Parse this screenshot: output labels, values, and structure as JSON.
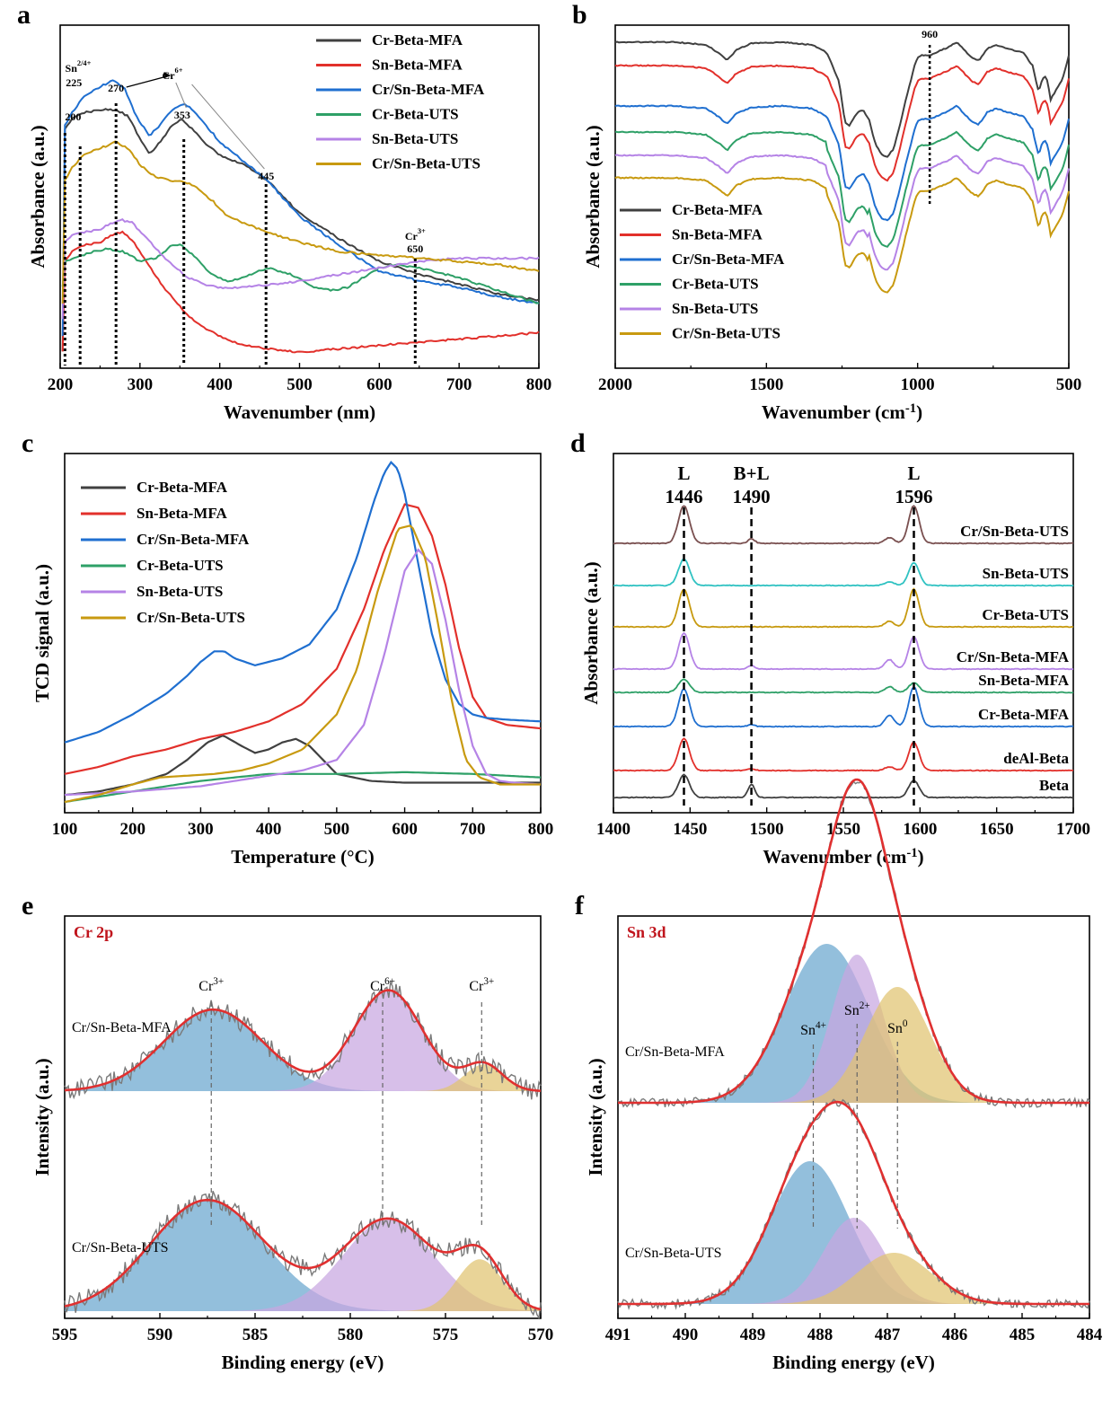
{
  "series_colors": {
    "Cr-Beta-MFA": "#404040",
    "Sn-Beta-MFA": "#e2302b",
    "Cr/Sn-Beta-MFA": "#1f6fd0",
    "Cr-Beta-UTS": "#2ea067",
    "Sn-Beta-UTS": "#b583e6",
    "Cr/Sn-Beta-UTS": "#c89a10"
  },
  "fit_colors": {
    "cr3": "#6aa6cf",
    "cr6": "#c7a6e0",
    "cr3b": "#e1c370",
    "raw": "#7a7a7a",
    "envelope": "#e03030",
    "sn4": "#6aa6cf",
    "sn2": "#c7a6e0",
    "sn0": "#e1c370"
  },
  "chart_data": [
    {
      "panel": "a",
      "type": "line",
      "xlabel": "Wavenumber (nm)",
      "ylabel": "Absorbance (a.u.)",
      "xlim": [
        200,
        800
      ],
      "xticks": [
        "200",
        "300",
        "400",
        "500",
        "600",
        "700",
        "800"
      ],
      "legend": [
        "Cr-Beta-MFA",
        "Sn-Beta-MFA",
        "Cr/Sn-Beta-MFA",
        "Cr-Beta-UTS",
        "Sn-Beta-UTS",
        "Cr/Sn-Beta-UTS"
      ],
      "annotations": {
        "a200": "200",
        "sn": "Sn",
        "sn_sup": "2/4+",
        "a225": "225",
        "a270": "270",
        "cr6": "Cr",
        "cr6_sup": "6+",
        "a353": "353",
        "a445": "445",
        "cr3": "Cr",
        "cr3_sup": "3+",
        "a650": "650"
      },
      "markers": [
        206,
        225,
        270,
        355,
        458,
        645
      ],
      "series": [
        {
          "name": "Cr-Beta-MFA",
          "x": [
            203,
            206,
            215,
            230,
            250,
            270,
            285,
            300,
            312,
            325,
            340,
            353,
            365,
            380,
            400,
            430,
            460,
            500,
            550,
            600,
            650,
            700,
            750,
            800
          ],
          "y": [
            0.05,
            0.74,
            0.77,
            0.79,
            0.8,
            0.8,
            0.78,
            0.71,
            0.66,
            0.7,
            0.75,
            0.77,
            0.74,
            0.7,
            0.66,
            0.63,
            0.58,
            0.48,
            0.4,
            0.33,
            0.29,
            0.26,
            0.23,
            0.21
          ]
        },
        {
          "name": "Sn-Beta-MFA",
          "x": [
            203,
            206,
            215,
            230,
            250,
            270,
            280,
            295,
            310,
            330,
            350,
            370,
            400,
            430,
            460,
            500,
            550,
            600,
            650,
            700,
            750,
            800
          ],
          "y": [
            0.05,
            0.33,
            0.36,
            0.38,
            0.39,
            0.42,
            0.42,
            0.38,
            0.32,
            0.25,
            0.19,
            0.14,
            0.1,
            0.07,
            0.06,
            0.05,
            0.06,
            0.07,
            0.08,
            0.09,
            0.1,
            0.11
          ]
        },
        {
          "name": "Cr/Sn-Beta-MFA",
          "x": [
            203,
            206,
            215,
            230,
            250,
            265,
            280,
            295,
            312,
            325,
            340,
            355,
            365,
            380,
            400,
            430,
            460,
            500,
            550,
            600,
            650,
            700,
            750,
            800
          ],
          "y": [
            0.1,
            0.75,
            0.79,
            0.84,
            0.87,
            0.89,
            0.87,
            0.78,
            0.72,
            0.75,
            0.8,
            0.82,
            0.8,
            0.76,
            0.7,
            0.64,
            0.58,
            0.47,
            0.38,
            0.3,
            0.27,
            0.25,
            0.22,
            0.2
          ]
        },
        {
          "name": "Cr-Beta-UTS",
          "x": [
            203,
            206,
            220,
            240,
            260,
            280,
            300,
            320,
            340,
            353,
            370,
            390,
            410,
            430,
            460,
            490,
            520,
            540,
            560,
            580,
            600,
            620,
            650,
            700,
            750,
            800
          ],
          "y": [
            0.25,
            0.33,
            0.34,
            0.36,
            0.37,
            0.36,
            0.33,
            0.34,
            0.38,
            0.38,
            0.34,
            0.29,
            0.27,
            0.28,
            0.31,
            0.29,
            0.25,
            0.24,
            0.25,
            0.28,
            0.31,
            0.32,
            0.31,
            0.28,
            0.24,
            0.2
          ]
        },
        {
          "name": "Sn-Beta-UTS",
          "x": [
            203,
            206,
            215,
            230,
            250,
            265,
            275,
            290,
            305,
            320,
            340,
            360,
            380,
            400,
            430,
            470,
            500,
            550,
            600,
            650,
            700,
            750,
            800
          ],
          "y": [
            0.15,
            0.39,
            0.41,
            0.42,
            0.43,
            0.45,
            0.46,
            0.45,
            0.41,
            0.37,
            0.32,
            0.28,
            0.26,
            0.25,
            0.25,
            0.26,
            0.27,
            0.29,
            0.31,
            0.33,
            0.34,
            0.34,
            0.34
          ]
        },
        {
          "name": "Cr/Sn-Beta-UTS",
          "x": [
            203,
            206,
            215,
            230,
            250,
            270,
            285,
            300,
            320,
            340,
            353,
            370,
            390,
            410,
            430,
            460,
            500,
            550,
            600,
            650,
            700,
            750,
            800
          ],
          "y": [
            0.2,
            0.58,
            0.62,
            0.66,
            0.68,
            0.7,
            0.68,
            0.63,
            0.59,
            0.58,
            0.58,
            0.56,
            0.52,
            0.47,
            0.45,
            0.42,
            0.39,
            0.36,
            0.35,
            0.34,
            0.33,
            0.32,
            0.3
          ]
        }
      ]
    },
    {
      "panel": "b",
      "type": "line",
      "xlabel": "Wavenumber (cm",
      "xlabel_sup": "-1",
      "xlabel_close": ")",
      "ylabel": "Absorbance (a.u.)",
      "xlim": [
        2000,
        500
      ],
      "xticks": [
        "2000",
        "1500",
        "1000",
        "500"
      ],
      "legend": [
        "Cr-Beta-MFA",
        "Sn-Beta-MFA",
        "Cr/Sn-Beta-MFA",
        "Cr-Beta-UTS",
        "Sn-Beta-UTS",
        "Cr/Sn-Beta-UTS"
      ],
      "annotations": {
        "a960": "960"
      },
      "markers": [
        960
      ],
      "offsets": [
        0,
        1,
        2,
        3,
        4,
        5
      ],
      "template_x": [
        2000,
        1900,
        1800,
        1700,
        1660,
        1630,
        1600,
        1550,
        1450,
        1350,
        1300,
        1260,
        1240,
        1225,
        1200,
        1180,
        1160,
        1140,
        1120,
        1100,
        1080,
        1060,
        1040,
        1010,
        1000,
        990,
        960,
        900,
        870,
        850,
        820,
        800,
        790,
        770,
        740,
        700,
        650,
        620,
        600,
        590,
        580,
        570,
        560,
        540,
        520,
        500
      ],
      "template_y": [
        0,
        0,
        0,
        -0.02,
        -0.08,
        -0.14,
        -0.06,
        -0.01,
        0,
        -0.02,
        -0.08,
        -0.3,
        -0.62,
        -0.64,
        -0.54,
        -0.52,
        -0.6,
        -0.78,
        -0.86,
        -0.88,
        -0.82,
        -0.65,
        -0.45,
        -0.18,
        -0.12,
        -0.1,
        -0.1,
        -0.04,
        0,
        -0.05,
        -0.12,
        -0.14,
        -0.12,
        -0.05,
        -0.02,
        -0.05,
        -0.08,
        -0.18,
        -0.38,
        -0.3,
        -0.26,
        -0.3,
        -0.44,
        -0.36,
        -0.28,
        -0.1
      ]
    },
    {
      "panel": "c",
      "type": "line",
      "xlabel": "Temperature (°C)",
      "ylabel": "TCD signal (a.u.)",
      "xlim": [
        100,
        800
      ],
      "xticks": [
        "100",
        "200",
        "300",
        "400",
        "500",
        "600",
        "700",
        "800"
      ],
      "legend": [
        "Cr-Beta-MFA",
        "Sn-Beta-MFA",
        "Cr/Sn-Beta-MFA",
        "Cr-Beta-UTS",
        "Sn-Beta-UTS",
        "Cr/Sn-Beta-UTS"
      ],
      "series": [
        {
          "name": "Cr-Beta-MFA",
          "x": [
            100,
            150,
            200,
            250,
            280,
            310,
            333,
            360,
            380,
            400,
            420,
            440,
            460,
            480,
            500,
            550,
            600,
            650,
            700,
            750,
            800
          ],
          "y": [
            0.02,
            0.03,
            0.05,
            0.08,
            0.12,
            0.17,
            0.19,
            0.16,
            0.14,
            0.15,
            0.17,
            0.18,
            0.16,
            0.12,
            0.08,
            0.06,
            0.055,
            0.055,
            0.055,
            0.055,
            0.055
          ]
        },
        {
          "name": "Sn-Beta-MFA",
          "x": [
            100,
            150,
            200,
            250,
            300,
            350,
            400,
            450,
            500,
            540,
            570,
            600,
            620,
            640,
            660,
            680,
            700,
            720,
            750,
            800
          ],
          "y": [
            0.08,
            0.1,
            0.13,
            0.15,
            0.18,
            0.2,
            0.23,
            0.28,
            0.38,
            0.55,
            0.72,
            0.85,
            0.84,
            0.76,
            0.62,
            0.44,
            0.3,
            0.24,
            0.22,
            0.21
          ]
        },
        {
          "name": "Cr/Sn-Beta-MFA",
          "x": [
            100,
            150,
            200,
            250,
            280,
            300,
            320,
            335,
            350,
            380,
            420,
            460,
            500,
            530,
            555,
            570,
            580,
            590,
            600,
            620,
            640,
            660,
            680,
            700,
            720,
            750,
            800
          ],
          "y": [
            0.17,
            0.2,
            0.25,
            0.31,
            0.36,
            0.4,
            0.43,
            0.43,
            0.41,
            0.39,
            0.41,
            0.45,
            0.55,
            0.7,
            0.86,
            0.94,
            0.97,
            0.95,
            0.88,
            0.68,
            0.48,
            0.35,
            0.28,
            0.25,
            0.24,
            0.235,
            0.23
          ]
        },
        {
          "name": "Cr-Beta-UTS",
          "x": [
            100,
            200,
            300,
            400,
            450,
            500,
            600,
            700,
            800
          ],
          "y": [
            0.0,
            0.03,
            0.06,
            0.08,
            0.08,
            0.08,
            0.085,
            0.08,
            0.07
          ]
        },
        {
          "name": "Sn-Beta-UTS",
          "x": [
            100,
            200,
            300,
            350,
            400,
            450,
            500,
            540,
            570,
            600,
            620,
            640,
            660,
            680,
            700,
            720,
            740,
            760,
            800
          ],
          "y": [
            0.02,
            0.03,
            0.045,
            0.06,
            0.075,
            0.09,
            0.12,
            0.22,
            0.42,
            0.66,
            0.72,
            0.68,
            0.52,
            0.32,
            0.16,
            0.08,
            0.06,
            0.055,
            0.05
          ]
        },
        {
          "name": "Cr/Sn-Beta-UTS",
          "x": [
            100,
            150,
            200,
            240,
            280,
            320,
            360,
            400,
            450,
            500,
            530,
            560,
            590,
            610,
            630,
            650,
            670,
            690,
            710,
            740,
            800
          ],
          "y": [
            0.0,
            0.02,
            0.05,
            0.07,
            0.075,
            0.08,
            0.09,
            0.11,
            0.15,
            0.25,
            0.38,
            0.6,
            0.78,
            0.79,
            0.7,
            0.5,
            0.28,
            0.12,
            0.07,
            0.05,
            0.05
          ]
        }
      ]
    },
    {
      "panel": "d",
      "type": "line",
      "xlabel": "Wavenumber (cm",
      "xlabel_sup": "-1",
      "xlabel_close": ")",
      "ylabel": "Absorbance (a.u.)",
      "xlim": [
        1400,
        1700
      ],
      "xticks": [
        "1400",
        "1450",
        "1500",
        "1550",
        "1600",
        "1650",
        "1700"
      ],
      "annotations": {
        "L1": "L",
        "p1446": "1446",
        "BL": "B+L",
        "p1490": "1490",
        "L2": "L",
        "p1596": "1596"
      },
      "markers": [
        1446,
        1490,
        1596
      ],
      "traces": [
        {
          "name": "Cr/Sn-Beta-UTS",
          "color": "#7a5050",
          "a1446": 1.0,
          "a1490": 0.12,
          "a1596": 1.0,
          "a1580": 0.15
        },
        {
          "name": "Sn-Beta-UTS",
          "color": "#30c2c2",
          "a1446": 0.7,
          "a1490": 0.0,
          "a1596": 0.6,
          "a1580": 0.1
        },
        {
          "name": "Cr-Beta-UTS",
          "color": "#c79a10",
          "a1446": 1.0,
          "a1490": 0.0,
          "a1596": 1.0,
          "a1580": 0.15
        },
        {
          "name": "Cr/Sn-Beta-MFA",
          "color": "#b583e6",
          "a1446": 0.95,
          "a1490": 0.1,
          "a1596": 0.85,
          "a1580": 0.25
        },
        {
          "name": "Sn-Beta-MFA",
          "color": "#2ea067",
          "a1446": 0.35,
          "a1490": 0.0,
          "a1596": 0.25,
          "a1580": 0.15
        },
        {
          "name": "Cr-Beta-MFA",
          "color": "#1f6fd0",
          "a1446": 1.0,
          "a1490": 0.05,
          "a1596": 1.05,
          "a1580": 0.3
        },
        {
          "name": "deAl-Beta",
          "color": "#e2302b",
          "a1446": 0.85,
          "a1490": 0.05,
          "a1596": 0.75,
          "a1580": 0.1
        },
        {
          "name": "Beta",
          "color": "#404040",
          "a1446": 0.6,
          "a1490": 0.35,
          "a1596": 0.45,
          "a1580": 0.0
        }
      ]
    },
    {
      "panel": "e",
      "type": "area",
      "title": "Cr 2p",
      "xlabel": "Binding energy (eV)",
      "ylabel": "Intensity (a.u.)",
      "xlim": [
        595,
        570
      ],
      "xticks": [
        "595",
        "590",
        "585",
        "580",
        "575",
        "570"
      ],
      "annotations": {
        "cr3a": "Cr",
        "cr3a_sup": "3+",
        "cr6": "Cr",
        "cr6_sup": "6+",
        "cr3b": "Cr",
        "cr3b_sup": "3+"
      },
      "markers": [
        587.3,
        578.3,
        573.1
      ],
      "samples": [
        {
          "label": "Cr/Sn-Beta-MFA",
          "peaks": [
            {
              "center": 587.2,
              "height": 0.55,
              "width": 2.6
            },
            {
              "center": 578.0,
              "height": 0.68,
              "width": 1.8
            },
            {
              "center": 573.0,
              "height": 0.18,
              "width": 1.0
            }
          ]
        },
        {
          "label": "Cr/Sn-Beta-UTS",
          "peaks": [
            {
              "center": 587.5,
              "height": 0.75,
              "width": 3.0
            },
            {
              "center": 578.0,
              "height": 0.62,
              "width": 2.4
            },
            {
              "center": 573.2,
              "height": 0.35,
              "width": 1.2
            }
          ]
        }
      ]
    },
    {
      "panel": "f",
      "type": "area",
      "title": "Sn 3d",
      "xlabel": "Binding energy (eV)",
      "ylabel": "Intensity (a.u.)",
      "xlim": [
        491,
        484
      ],
      "xticks": [
        "491",
        "490",
        "489",
        "488",
        "487",
        "486",
        "485",
        "484"
      ],
      "annotations": {
        "sn4": "Sn",
        "sn4_sup": "4+",
        "sn2": "Sn",
        "sn2_sup": "2+",
        "sn0": "Sn",
        "sn0_sup": "0"
      },
      "markers": [
        488.1,
        487.45,
        486.85
      ],
      "samples": [
        {
          "label": "Cr/Sn-Beta-MFA",
          "peaks": [
            {
              "center": 487.9,
              "height": 0.59,
              "width": 0.62
            },
            {
              "center": 487.45,
              "height": 0.55,
              "width": 0.38
            },
            {
              "center": 486.85,
              "height": 0.43,
              "width": 0.48
            }
          ]
        },
        {
          "label": "Cr/Sn-Beta-UTS",
          "peaks": [
            {
              "center": 488.15,
              "height": 0.53,
              "width": 0.58
            },
            {
              "center": 487.5,
              "height": 0.32,
              "width": 0.45
            },
            {
              "center": 486.9,
              "height": 0.19,
              "width": 0.55
            }
          ]
        }
      ]
    }
  ],
  "panel_labels": {
    "a": "a",
    "b": "b",
    "c": "c",
    "d": "d",
    "e": "e",
    "f": "f"
  }
}
